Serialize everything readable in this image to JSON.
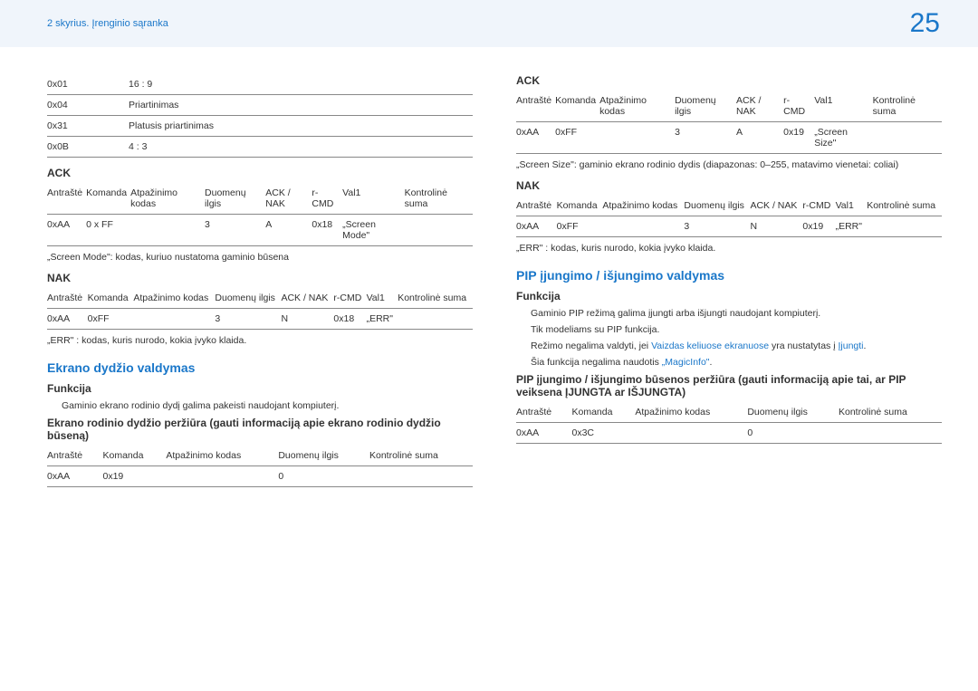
{
  "header": {
    "breadcrumb": "2 skyrius. Įrenginio sąranka",
    "page_num": "25"
  },
  "left": {
    "aspect_table": [
      [
        "0x01",
        "16 : 9"
      ],
      [
        "0x04",
        "Priartinimas"
      ],
      [
        "0x31",
        "Platusis priartinimas"
      ],
      [
        "0x0B",
        "4 : 3"
      ]
    ],
    "ack_label": "ACK",
    "ack_headers": [
      "Antraštė",
      "Komanda",
      "Atpažinimo kodas",
      "Duomenų ilgis",
      "ACK / NAK",
      "r-CMD",
      "Val1",
      "Kontrolinė suma"
    ],
    "ack_row": [
      "0xAA",
      "0 x FF",
      "",
      "3",
      "A",
      "0x18",
      "„Screen Mode\"",
      ""
    ],
    "screen_mode_note": "„Screen Mode\": kodas, kuriuo nustatoma gaminio būsena",
    "nak_label": "NAK",
    "nak_headers": [
      "Antraštė",
      "Komanda",
      "Atpažinimo kodas",
      "Duomenų ilgis",
      "ACK / NAK",
      "r-CMD",
      "Val1",
      "Kontrolinė suma"
    ],
    "nak_row": [
      "0xAA",
      "0xFF",
      "",
      "3",
      "N",
      "0x18",
      "„ERR\"",
      ""
    ],
    "err_note": "„ERR\" : kodas, kuris nurodo, kokia įvyko klaida.",
    "screen_size_heading": "Ekrano dydžio valdymas",
    "funkcija_label": "Funkcija",
    "funkcija_text": "Gaminio ekrano rodinio dydį galima pakeisti naudojant kompiuterį.",
    "view_heading": "Ekrano rodinio dydžio peržiūra (gauti informaciją apie ekrano rodinio dydžio būseną)",
    "view_headers": [
      "Antraštė",
      "Komanda",
      "Atpažinimo kodas",
      "Duomenų ilgis",
      "Kontrolinė suma"
    ],
    "view_row": [
      "0xAA",
      "0x19",
      "",
      "0",
      ""
    ]
  },
  "right": {
    "ack_label": "ACK",
    "ack_headers": [
      "Antraštė",
      "Komanda",
      "Atpažinimo kodas",
      "Duomenų ilgis",
      "ACK / NAK",
      "r-CMD",
      "Val1",
      "Kontrolinė suma"
    ],
    "ack_row": [
      "0xAA",
      "0xFF",
      "",
      "3",
      "A",
      "0x19",
      "„Screen Size\"",
      ""
    ],
    "screen_size_note": "„Screen Size\": gaminio ekrano rodinio dydis (diapazonas: 0–255, matavimo vienetai: coliai)",
    "nak_label": "NAK",
    "nak_headers": [
      "Antraštė",
      "Komanda",
      "Atpažinimo kodas",
      "Duomenų ilgis",
      "ACK / NAK",
      "r-CMD",
      "Val1",
      "Kontrolinė suma"
    ],
    "nak_row": [
      "0xAA",
      "0xFF",
      "",
      "3",
      "N",
      "0x19",
      "„ERR\"",
      ""
    ],
    "err_note": "„ERR\" : kodas, kuris nurodo, kokia įvyko klaida.",
    "pip_heading": "PIP įjungimo / išjungimo valdymas",
    "funkcija_label": "Funkcija",
    "f1": "Gaminio PIP režimą galima įjungti arba išjungti naudojant kompiuterį.",
    "f2": "Tik modeliams su PIP funkcija.",
    "f3a": "Režimo negalima valdyti, jei ",
    "f3b": "Vaizdas keliuose ekranuose",
    "f3c": " yra nustatytas į ",
    "f3d": "Įjungti",
    "f3e": ".",
    "f4a": "Šia funkcija negalima naudotis ",
    "f4b": "„MagicInfo\"",
    "f4c": ".",
    "pip_view_heading": "PIP įjungimo / išjungimo būsenos peržiūra (gauti informaciją apie tai, ar PIP veiksena ĮJUNGTA ar IŠJUNGTA)",
    "pip_headers": [
      "Antraštė",
      "Komanda",
      "Atpažinimo kodas",
      "Duomenų ilgis",
      "Kontrolinė suma"
    ],
    "pip_row": [
      "0xAA",
      "0x3C",
      "",
      "0",
      ""
    ]
  }
}
